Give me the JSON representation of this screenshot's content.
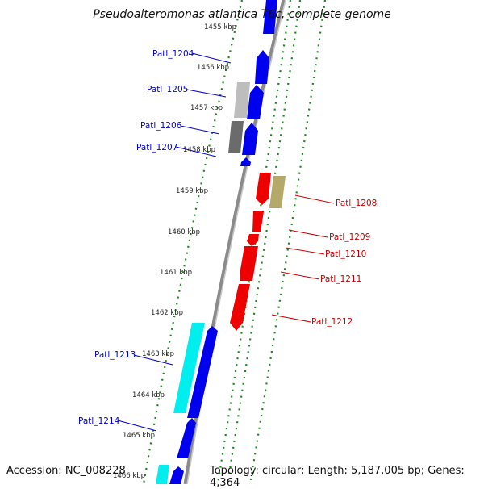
{
  "title": "Pseudoalteromonas atlantica T6c, complete genome",
  "accession": "Accession: NC_008228",
  "topology": "Topology: circular; Length: 5,187,005 bp; Genes: 4,364",
  "colors": {
    "backbone": "#8a8a8a",
    "tick_green": "#1a8a1a",
    "gene_blue": "#0000ee",
    "gene_red": "#ee0000",
    "gene_cyan": "#00eeee",
    "gene_gray_light": "#bdbdbd",
    "gene_gray_dark": "#6b6b6b",
    "gene_olive": "#b5a96a",
    "label_blue": "#0000cc",
    "label_red": "#cc0000"
  },
  "scale_labels": [
    "1455 kbp",
    "1456 kbp",
    "1457 kbp",
    "1458 kbp",
    "1459 kbp",
    "1460 kbp",
    "1461 kbp",
    "1462 kbp",
    "1463 kbp",
    "1464 kbp",
    "1465 kbp",
    "1466 kbp"
  ],
  "gene_labels": {
    "patl_1204": "Patl_1204",
    "patl_1205": "Patl_1205",
    "patl_1206": "Patl_1206",
    "patl_1207": "Patl_1207",
    "patl_1208": "Patl_1208",
    "patl_1209": "Patl_1209",
    "patl_1210": "Patl_1210",
    "patl_1211": "Patl_1211",
    "patl_1212": "Patl_1212",
    "patl_1213": "Patl_1213",
    "patl_1214": "Patl_1214"
  }
}
